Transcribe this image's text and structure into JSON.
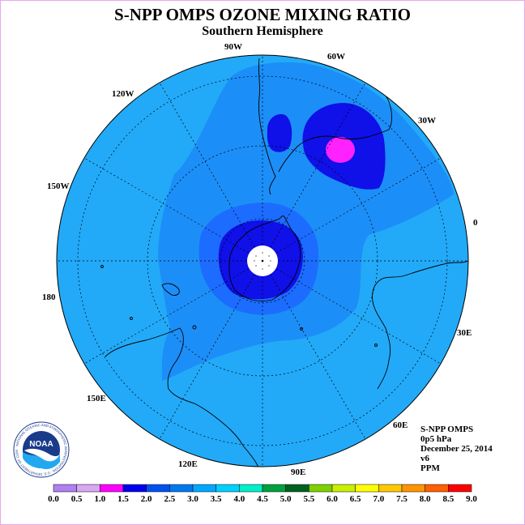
{
  "header": {
    "title": "S-NPP OMPS OZONE MIXING RATIO",
    "subtitle": "Southern Hemisphere"
  },
  "map": {
    "projection": "south-polar-stereographic",
    "longitude_labels": [
      "90W",
      "60W",
      "30W",
      "0",
      "30E",
      "60E",
      "90E",
      "120E",
      "150E",
      "180",
      "150W",
      "120W"
    ]
  },
  "info": {
    "instrument": "S-NPP OMPS",
    "level": "0p5 hPa",
    "date": "December 25, 2014",
    "version": "v6",
    "units": "PPM"
  },
  "logo": {
    "text": "NOAA",
    "ring_text": "NATIONAL OCEANIC AND ATMOSPHERIC ADMINISTRATION · U.S. DEPARTMENT OF COMMERCE"
  },
  "colorbar": {
    "labels": [
      "0.0",
      "0.5",
      "1.0",
      "1.5",
      "2.0",
      "2.5",
      "3.0",
      "3.5",
      "4.0",
      "4.5",
      "5.0",
      "5.5",
      "6.0",
      "6.5",
      "7.0",
      "7.5",
      "8.0",
      "8.5",
      "9.0"
    ],
    "colors": [
      "#b080f0",
      "#d8a8f0",
      "#ff00ff",
      "#0000ee",
      "#0050f0",
      "#0078f0",
      "#00a8ff",
      "#00d0ff",
      "#00f0c8",
      "#00a040",
      "#006020",
      "#80d000",
      "#c8f000",
      "#ffff00",
      "#ffc800",
      "#ff9600",
      "#ff6000",
      "#ff0000",
      "#a06040"
    ]
  },
  "legend_colors": {
    "band_2_0": "#1c6cff",
    "band_2_5": "#1c8ef8",
    "band_3_0": "#22aaf8",
    "band_1_5": "#1010e8",
    "band_1_0": "#ff22ff"
  }
}
